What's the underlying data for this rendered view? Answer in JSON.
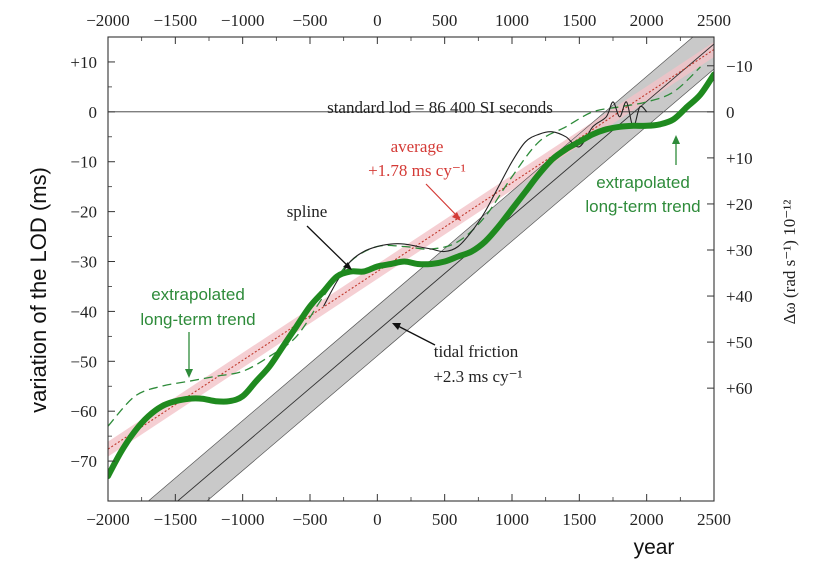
{
  "chart_data": {
    "type": "line",
    "xlabel": "year",
    "ylabel": "variation of the LOD (ms)",
    "y2label": "Δω (rad s⁻¹) 10⁻¹²",
    "xlim": [
      -2000,
      2500
    ],
    "ylim": [
      -78,
      15
    ],
    "x_ticks": [
      "−2000",
      "−1500",
      "−1000",
      "−500",
      "0",
      "500",
      "1000",
      "1500",
      "2000",
      "2500"
    ],
    "y_ticks": [
      "+10",
      "0",
      "−10",
      "−20",
      "−30",
      "−40",
      "−50",
      "−60",
      "−70"
    ],
    "y2_ticks": [
      "−10",
      "0",
      "+10",
      "+20",
      "+30",
      "+40",
      "+50",
      "+60"
    ],
    "annotations": {
      "standard": "standard lod = 86 400 SI seconds",
      "average_1": "average",
      "average_2": "+1.78 ms cy⁻¹",
      "spline": "spline",
      "tidal_1": "tidal friction",
      "tidal_2": "+2.3 ms cy⁻¹",
      "extrap_left_1": "extrapolated",
      "extrap_left_2": "long-term trend",
      "extrap_right_1": "extrapolated",
      "extrap_right_2": "long-term trend"
    },
    "series": [
      {
        "name": "tidal friction",
        "x": [
          -2000,
          2500
        ],
        "y": [
          -89.9,
          13.6
        ],
        "band": 5,
        "color": "#333333"
      },
      {
        "name": "average",
        "x": [
          -2000,
          2500
        ],
        "y": [
          -67.6,
          12.5
        ],
        "band": 1.5,
        "color": "#d9534f"
      },
      {
        "name": "spline",
        "x": [
          -400,
          -300,
          -200,
          -100,
          0,
          100,
          200,
          300,
          400,
          500,
          600,
          700,
          800,
          900,
          1000,
          1100,
          1200,
          1300,
          1400,
          1500,
          1600,
          1700,
          1750,
          1800,
          1850,
          1900,
          1950,
          2000
        ],
        "y": [
          -39,
          -34,
          -30,
          -28,
          -27,
          -26.5,
          -26.5,
          -27,
          -27.5,
          -28,
          -27,
          -24,
          -20,
          -15,
          -10,
          -6,
          -4.5,
          -4,
          -5,
          -7,
          -3,
          -1,
          2,
          -1,
          2,
          -3,
          1,
          0
        ],
        "color": "#222222"
      },
      {
        "name": "extrapolated long-term trend",
        "x": [
          -2000,
          -1800,
          -1600,
          -1400,
          -1200,
          -1000,
          -800,
          -600,
          -400,
          -200,
          0,
          200,
          400,
          600,
          800,
          1000,
          1200,
          1400,
          1600,
          1800,
          2000,
          2200,
          2400
        ],
        "y": [
          -63,
          -57,
          -55,
          -54,
          -53,
          -52,
          -49,
          -45,
          -37,
          -30,
          -27,
          -27,
          -27.5,
          -26,
          -21,
          -13,
          -6,
          -3,
          0,
          1,
          2,
          4,
          9
        ],
        "color": "#2e8b3a"
      },
      {
        "name": "long-term trend",
        "x": [
          -2000,
          -1900,
          -1800,
          -1700,
          -1600,
          -1500,
          -1400,
          -1300,
          -1200,
          -1100,
          -1000,
          -900,
          -800,
          -700,
          -600,
          -500,
          -400,
          -300,
          -200,
          -100,
          0,
          100,
          200,
          300,
          400,
          500,
          600,
          700,
          800,
          900,
          1000,
          1100,
          1200,
          1300,
          1400,
          1500,
          1600,
          1700,
          1800,
          1900,
          2000,
          2100,
          2200,
          2300,
          2400,
          2500
        ],
        "y": [
          -73,
          -68,
          -64,
          -61,
          -59,
          -58,
          -57.5,
          -57.5,
          -58,
          -58,
          -57,
          -54,
          -51,
          -47,
          -43,
          -39,
          -36,
          -33,
          -32,
          -32,
          -31,
          -30.5,
          -30,
          -30.5,
          -30.5,
          -30,
          -29,
          -28,
          -26,
          -23,
          -19.5,
          -16,
          -12.5,
          -9.5,
          -7.5,
          -6,
          -4.5,
          -3.5,
          -3,
          -2.8,
          -2.8,
          -2.5,
          -1.5,
          1,
          3.5,
          7.5
        ],
        "color": "#1f8a1f"
      }
    ]
  }
}
